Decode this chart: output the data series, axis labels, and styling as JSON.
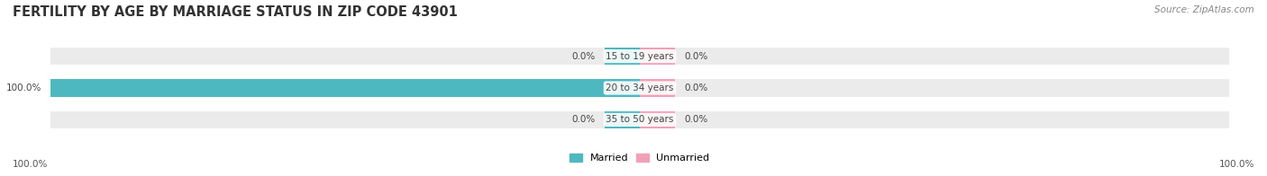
{
  "title": "FERTILITY BY AGE BY MARRIAGE STATUS IN ZIP CODE 43901",
  "source": "Source: ZipAtlas.com",
  "categories": [
    "15 to 19 years",
    "20 to 34 years",
    "35 to 50 years"
  ],
  "married_values": [
    0.0,
    100.0,
    0.0
  ],
  "unmarried_values": [
    0.0,
    0.0,
    0.0
  ],
  "married_color": "#4db8c0",
  "unmarried_color": "#f2a0b8",
  "bar_bg_color": "#ebebeb",
  "bar_height": 0.55,
  "figsize": [
    14.06,
    1.96
  ],
  "xlim": [
    -100,
    100
  ],
  "married_label": "Married",
  "unmarried_label": "Unmarried",
  "title_fontsize": 10.5,
  "label_fontsize": 7.5,
  "tick_fontsize": 7.5,
  "legend_fontsize": 8,
  "source_fontsize": 7.5,
  "left_axis_label": "100.0%",
  "right_axis_label": "100.0%",
  "nub_size": 6.0
}
